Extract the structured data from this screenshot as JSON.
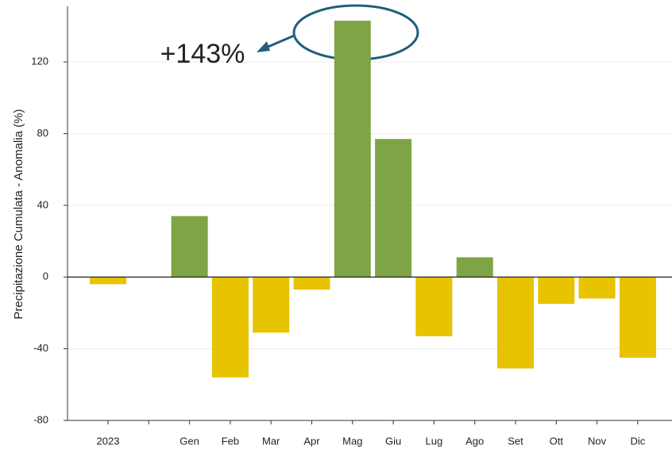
{
  "chart_data": {
    "type": "bar",
    "y_label": "Precipitazione Cumulata - Anomalia (%)",
    "annotation": "+143%",
    "categories": [
      "2023",
      null,
      "Gen",
      "Feb",
      "Mar",
      "Apr",
      "Mag",
      "Giu",
      "Lug",
      "Ago",
      "Set",
      "Ott",
      "Nov",
      "Dic"
    ],
    "values": [
      -4,
      null,
      34,
      -56,
      -31,
      -7,
      143,
      77,
      -33,
      11,
      -51,
      -15,
      -12,
      -45
    ],
    "positive_color": "#7fa446",
    "negative_color": "#e8c300",
    "ylim": [
      -80,
      151
    ],
    "yticks": [
      -80,
      -40,
      0,
      40,
      80,
      120
    ],
    "grid": true
  }
}
